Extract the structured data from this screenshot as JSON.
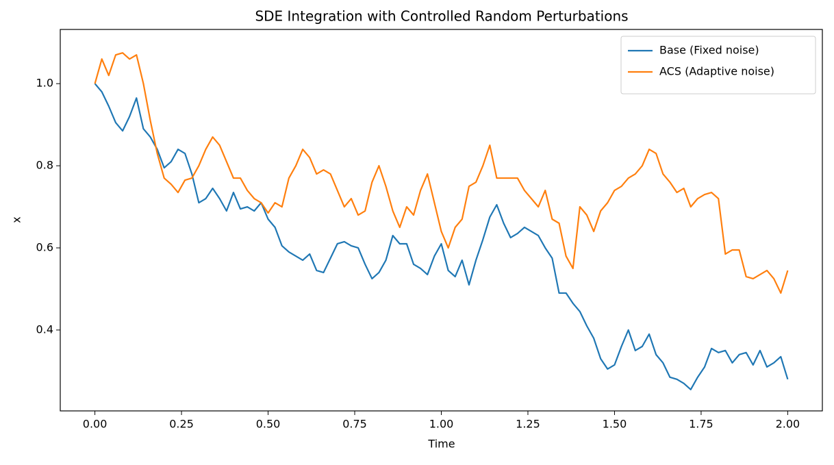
{
  "chart_data": {
    "type": "line",
    "title": "SDE Integration with Controlled Random Perturbations",
    "xlabel": "Time",
    "ylabel": "x",
    "x": [
      0,
      0.02,
      0.04,
      0.06,
      0.08,
      0.1,
      0.12,
      0.14,
      0.16,
      0.18,
      0.2,
      0.22,
      0.24,
      0.26,
      0.28,
      0.3,
      0.32,
      0.34,
      0.36,
      0.38,
      0.4,
      0.42,
      0.44,
      0.46,
      0.48,
      0.5,
      0.52,
      0.54,
      0.56,
      0.58,
      0.6,
      0.62,
      0.64,
      0.66,
      0.68,
      0.7,
      0.72,
      0.74,
      0.76,
      0.78,
      0.8,
      0.82,
      0.84,
      0.86,
      0.88,
      0.9,
      0.92,
      0.94,
      0.96,
      0.98,
      1.0,
      1.02,
      1.04,
      1.06,
      1.08,
      1.1,
      1.12,
      1.14,
      1.16,
      1.18,
      1.2,
      1.22,
      1.24,
      1.26,
      1.28,
      1.3,
      1.32,
      1.34,
      1.36,
      1.38,
      1.4,
      1.42,
      1.44,
      1.46,
      1.48,
      1.5,
      1.52,
      1.54,
      1.56,
      1.58,
      1.6,
      1.62,
      1.64,
      1.66,
      1.68,
      1.7,
      1.72,
      1.74,
      1.76,
      1.78,
      1.8,
      1.82,
      1.84,
      1.86,
      1.88,
      1.9,
      1.92,
      1.94,
      1.96,
      1.98,
      2.0
    ],
    "series": [
      {
        "name": "Base (Fixed noise)",
        "color": "#1f77b4",
        "values": [
          1.0,
          0.98,
          0.945,
          0.905,
          0.885,
          0.92,
          0.965,
          0.89,
          0.87,
          0.84,
          0.795,
          0.81,
          0.84,
          0.83,
          0.78,
          0.71,
          0.72,
          0.745,
          0.72,
          0.69,
          0.735,
          0.695,
          0.7,
          0.69,
          0.71,
          0.67,
          0.65,
          0.605,
          0.59,
          0.58,
          0.57,
          0.585,
          0.545,
          0.54,
          0.575,
          0.61,
          0.615,
          0.605,
          0.6,
          0.56,
          0.525,
          0.54,
          0.57,
          0.63,
          0.61,
          0.61,
          0.56,
          0.55,
          0.535,
          0.58,
          0.61,
          0.545,
          0.53,
          0.57,
          0.51,
          0.57,
          0.62,
          0.675,
          0.705,
          0.66,
          0.625,
          0.635,
          0.65,
          0.64,
          0.63,
          0.6,
          0.575,
          0.49,
          0.49,
          0.465,
          0.445,
          0.41,
          0.38,
          0.33,
          0.305,
          0.315,
          0.36,
          0.4,
          0.35,
          0.36,
          0.39,
          0.34,
          0.32,
          0.285,
          0.28,
          0.27,
          0.255,
          0.285,
          0.31,
          0.355,
          0.345,
          0.35,
          0.32,
          0.34,
          0.345,
          0.315,
          0.35,
          0.31,
          0.32,
          0.335,
          0.28
        ]
      },
      {
        "name": "ACS (Adaptive noise)",
        "color": "#ff7f0e",
        "values": [
          1.0,
          1.06,
          1.02,
          1.07,
          1.075,
          1.06,
          1.07,
          1.0,
          0.91,
          0.83,
          0.77,
          0.755,
          0.735,
          0.765,
          0.77,
          0.8,
          0.84,
          0.87,
          0.85,
          0.81,
          0.77,
          0.77,
          0.74,
          0.72,
          0.71,
          0.685,
          0.71,
          0.7,
          0.77,
          0.8,
          0.84,
          0.82,
          0.78,
          0.79,
          0.78,
          0.74,
          0.7,
          0.72,
          0.68,
          0.69,
          0.76,
          0.8,
          0.75,
          0.69,
          0.65,
          0.7,
          0.68,
          0.74,
          0.78,
          0.71,
          0.64,
          0.6,
          0.65,
          0.67,
          0.75,
          0.76,
          0.8,
          0.85,
          0.77,
          0.77,
          0.77,
          0.77,
          0.74,
          0.72,
          0.7,
          0.74,
          0.67,
          0.66,
          0.58,
          0.55,
          0.7,
          0.68,
          0.64,
          0.69,
          0.71,
          0.74,
          0.75,
          0.77,
          0.78,
          0.8,
          0.84,
          0.83,
          0.78,
          0.76,
          0.735,
          0.745,
          0.7,
          0.72,
          0.73,
          0.735,
          0.72,
          0.585,
          0.595,
          0.595,
          0.53,
          0.525,
          0.535,
          0.545,
          0.525,
          0.49,
          0.545
        ]
      }
    ],
    "xlim": [
      -0.1,
      2.1
    ],
    "ylim": [
      0.203,
      1.132
    ],
    "xticks": [
      {
        "value": 0,
        "label": "0.00"
      },
      {
        "value": 0.25,
        "label": "0.25"
      },
      {
        "value": 0.5,
        "label": "0.50"
      },
      {
        "value": 0.75,
        "label": "0.75"
      },
      {
        "value": 1.0,
        "label": "1.00"
      },
      {
        "value": 1.25,
        "label": "1.25"
      },
      {
        "value": 1.5,
        "label": "1.50"
      },
      {
        "value": 1.75,
        "label": "1.75"
      },
      {
        "value": 2.0,
        "label": "2.00"
      }
    ],
    "yticks": [
      0.4,
      0.6,
      0.8,
      {
        "value": 1.0,
        "label": "1.0"
      }
    ],
    "grid": false,
    "legend": "upper right"
  }
}
